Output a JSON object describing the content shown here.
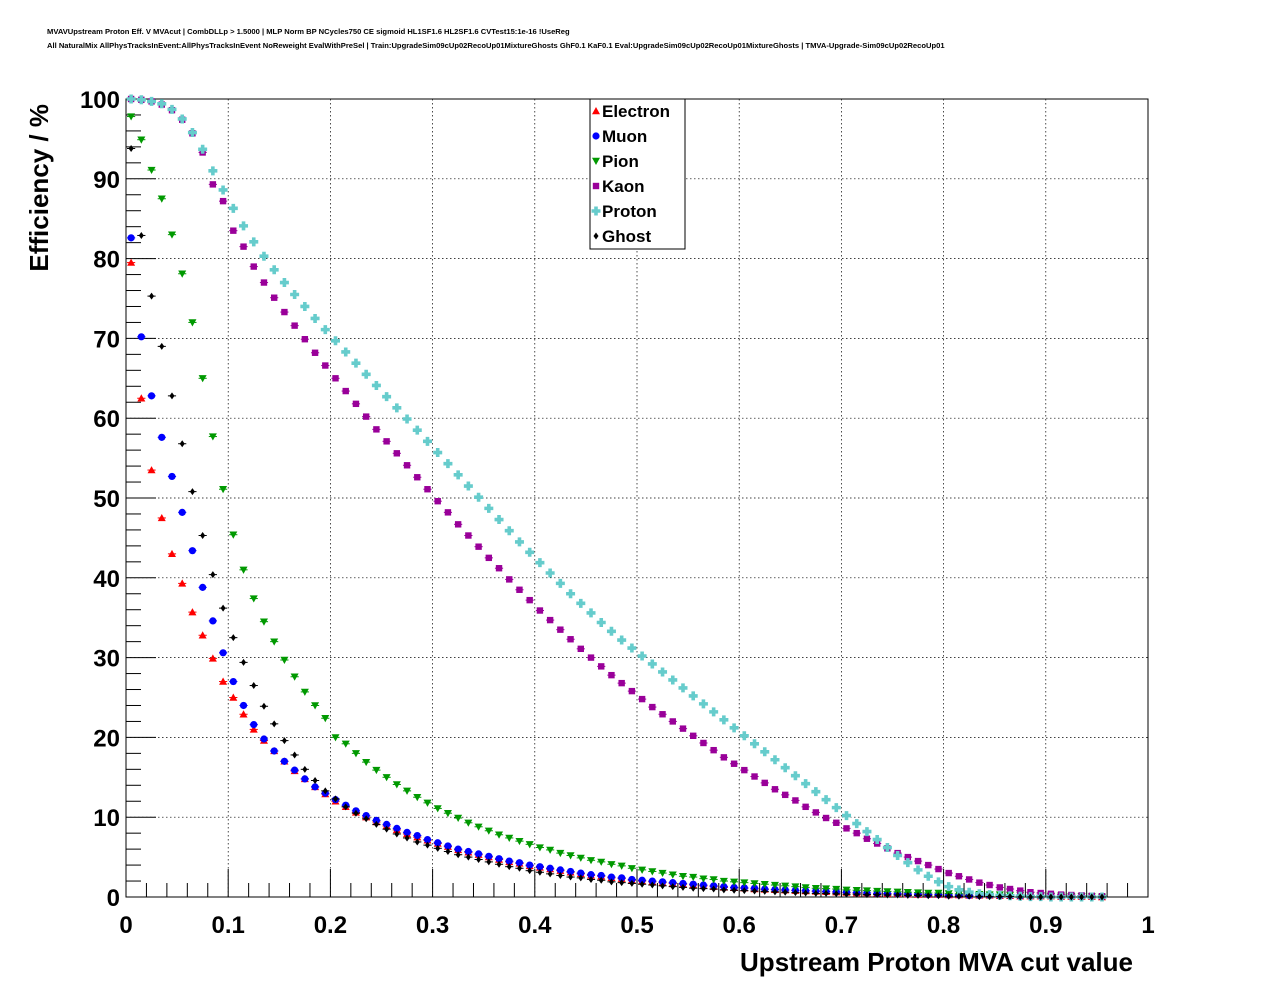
{
  "header": {
    "line1": "MVAVUpstream Proton Eff. V MVAcut | CombDLLp > 1.5000 | MLP Norm BP NCycles750 CE sigmoid HL1SF1.6 HL2SF1.6 CVTest15:1e-16 !UseReg",
    "line2": "All NaturalMix AllPhysTracksInEvent:AllPhysTracksInEvent NoReweight EvalWithPreSel | Train:UpgradeSim09cUp02RecoUp01MixtureGhosts GhF0.1 KaF0.1 Eval:UpgradeSim09cUp02RecoUp01MixtureGhosts | TMVA-Upgrade-Sim09cUp02RecoUp01"
  },
  "chart_data": {
    "type": "scatter",
    "xlabel": "Upstream Proton MVA cut value",
    "ylabel": "Efficiency / %",
    "xlim": [
      0,
      1
    ],
    "ylim": [
      0,
      100
    ],
    "x_ticks": [
      "0",
      "0.1",
      "0.2",
      "0.3",
      "0.4",
      "0.5",
      "0.6",
      "0.7",
      "0.8",
      "0.9",
      "1"
    ],
    "y_ticks": [
      "0",
      "10",
      "20",
      "30",
      "40",
      "50",
      "60",
      "70",
      "80",
      "90",
      "100"
    ],
    "grid": true,
    "legend_position": "top-center",
    "x": [
      0.005,
      0.015,
      0.025,
      0.035,
      0.045,
      0.055,
      0.065,
      0.075,
      0.085,
      0.095,
      0.105,
      0.115,
      0.125,
      0.135,
      0.145,
      0.155,
      0.165,
      0.175,
      0.185,
      0.195,
      0.205,
      0.215,
      0.225,
      0.235,
      0.245,
      0.255,
      0.265,
      0.275,
      0.285,
      0.295,
      0.305,
      0.315,
      0.325,
      0.335,
      0.345,
      0.355,
      0.365,
      0.375,
      0.385,
      0.395,
      0.405,
      0.415,
      0.425,
      0.435,
      0.445,
      0.455,
      0.465,
      0.475,
      0.485,
      0.495,
      0.505,
      0.515,
      0.525,
      0.535,
      0.545,
      0.555,
      0.565,
      0.575,
      0.585,
      0.595,
      0.605,
      0.615,
      0.625,
      0.635,
      0.645,
      0.655,
      0.665,
      0.675,
      0.685,
      0.695,
      0.705,
      0.715,
      0.725,
      0.735,
      0.745,
      0.755,
      0.765,
      0.775,
      0.785,
      0.795,
      0.805,
      0.815,
      0.825,
      0.835,
      0.845,
      0.855,
      0.865,
      0.875,
      0.885,
      0.895,
      0.905,
      0.915,
      0.925,
      0.935,
      0.945,
      0.955
    ],
    "series": [
      {
        "name": "Electron",
        "color": "#ff0000",
        "marker": "triangle-up",
        "values": [
          79.5,
          62.5,
          53.5,
          47.5,
          43.0,
          39.3,
          35.7,
          32.8,
          29.9,
          27.0,
          25.0,
          22.9,
          21.0,
          19.6,
          18.3,
          17.0,
          15.8,
          14.8,
          13.8,
          12.9,
          12.0,
          11.3,
          10.6,
          10.0,
          9.4,
          8.9,
          8.4,
          7.9,
          7.5,
          7.1,
          6.7,
          6.3,
          5.9,
          5.6,
          5.3,
          5.0,
          4.7,
          4.4,
          4.2,
          3.9,
          3.7,
          3.5,
          3.3,
          3.1,
          2.9,
          2.7,
          2.6,
          2.4,
          2.3,
          2.1,
          2.0,
          1.9,
          1.8,
          1.7,
          1.6,
          1.5,
          1.4,
          1.3,
          1.2,
          1.15,
          1.1,
          1.0,
          0.95,
          0.9,
          0.85,
          0.8,
          0.75,
          0.7,
          0.65,
          0.6,
          0.55,
          0.5,
          0.5,
          0.45,
          0.4,
          0.4,
          0.35,
          0.3,
          0.3,
          0.3,
          0.25,
          0.25,
          0.2,
          0.2,
          0.2,
          0.15,
          0.15,
          0.1,
          0.1,
          0.1,
          0.1,
          0.05,
          0.05,
          0.05,
          0.05,
          0.0
        ]
      },
      {
        "name": "Muon",
        "color": "#0000ff",
        "marker": "circle",
        "values": [
          82.6,
          70.2,
          62.8,
          57.6,
          52.7,
          48.2,
          43.4,
          38.8,
          34.6,
          30.6,
          27.0,
          24.0,
          21.6,
          19.8,
          18.3,
          17.0,
          15.9,
          14.8,
          13.8,
          13.0,
          12.2,
          11.5,
          10.8,
          10.2,
          9.6,
          9.1,
          8.6,
          8.1,
          7.7,
          7.2,
          6.8,
          6.4,
          6.0,
          5.7,
          5.4,
          5.1,
          4.8,
          4.5,
          4.3,
          4.0,
          3.8,
          3.6,
          3.4,
          3.2,
          3.0,
          2.8,
          2.7,
          2.5,
          2.4,
          2.2,
          2.1,
          2.0,
          1.9,
          1.8,
          1.7,
          1.6,
          1.5,
          1.4,
          1.3,
          1.2,
          1.15,
          1.1,
          1.0,
          0.95,
          0.9,
          0.85,
          0.8,
          0.75,
          0.7,
          0.65,
          0.6,
          0.55,
          0.5,
          0.45,
          0.45,
          0.4,
          0.35,
          0.35,
          0.3,
          0.3,
          0.25,
          0.25,
          0.2,
          0.2,
          0.2,
          0.15,
          0.15,
          0.1,
          0.1,
          0.1,
          0.1,
          0.05,
          0.05,
          0.05,
          0.05,
          0.0
        ]
      },
      {
        "name": "Pion",
        "color": "#009900",
        "marker": "triangle-down",
        "values": [
          97.8,
          94.9,
          91.1,
          87.5,
          83.0,
          78.1,
          72.0,
          65.0,
          57.7,
          51.1,
          45.4,
          41.0,
          37.4,
          34.5,
          32.0,
          29.7,
          27.6,
          25.7,
          24.0,
          22.4,
          20.0,
          19.2,
          18.0,
          16.9,
          15.9,
          15.0,
          14.1,
          13.3,
          12.5,
          11.8,
          11.1,
          10.5,
          9.9,
          9.3,
          8.8,
          8.3,
          7.8,
          7.4,
          7.0,
          6.6,
          6.2,
          5.9,
          5.5,
          5.2,
          4.9,
          4.6,
          4.4,
          4.1,
          3.9,
          3.6,
          3.4,
          3.2,
          3.0,
          2.8,
          2.6,
          2.5,
          2.3,
          2.2,
          2.0,
          1.9,
          1.8,
          1.7,
          1.6,
          1.5,
          1.4,
          1.3,
          1.2,
          1.1,
          1.05,
          1.0,
          0.9,
          0.85,
          0.8,
          0.75,
          0.7,
          0.65,
          0.6,
          0.55,
          0.5,
          0.5,
          0.45,
          0.4,
          0.4,
          0.35,
          0.3,
          0.3,
          0.25,
          0.25,
          0.2,
          0.2,
          0.15,
          0.15,
          0.1,
          0.1,
          0.05,
          0.0
        ]
      },
      {
        "name": "Kaon",
        "color": "#990099",
        "marker": "square",
        "values": [
          100.0,
          99.9,
          99.7,
          99.3,
          98.6,
          97.4,
          95.7,
          93.3,
          89.3,
          87.2,
          83.5,
          81.5,
          79.0,
          77.0,
          75.1,
          73.3,
          71.6,
          69.9,
          68.2,
          66.6,
          65.0,
          63.4,
          61.8,
          60.2,
          58.6,
          57.1,
          55.6,
          54.1,
          52.6,
          51.1,
          49.6,
          48.2,
          46.7,
          45.3,
          43.9,
          42.5,
          41.2,
          39.8,
          38.5,
          37.2,
          35.9,
          34.7,
          33.5,
          32.3,
          31.1,
          30.0,
          28.9,
          27.8,
          26.8,
          25.8,
          24.8,
          23.8,
          22.9,
          22.0,
          21.1,
          20.2,
          19.3,
          18.4,
          17.5,
          16.7,
          15.9,
          15.1,
          14.3,
          13.5,
          12.8,
          12.1,
          11.3,
          10.6,
          9.9,
          9.3,
          8.6,
          8.0,
          7.3,
          6.7,
          6.1,
          5.5,
          5.0,
          4.5,
          4.0,
          3.5,
          3.0,
          2.6,
          2.2,
          1.8,
          1.5,
          1.2,
          1.0,
          0.8,
          0.6,
          0.5,
          0.4,
          0.3,
          0.25,
          0.2,
          0.15,
          0.1
        ]
      },
      {
        "name": "Proton",
        "color": "#66cccc",
        "marker": "cross",
        "values": [
          100.0,
          99.9,
          99.7,
          99.4,
          98.7,
          97.5,
          95.8,
          93.7,
          91.0,
          88.6,
          86.3,
          84.1,
          82.1,
          80.3,
          78.6,
          77.0,
          75.5,
          74.0,
          72.5,
          71.1,
          69.7,
          68.3,
          66.9,
          65.5,
          64.1,
          62.7,
          61.3,
          59.9,
          58.5,
          57.1,
          55.7,
          54.3,
          52.9,
          51.5,
          50.1,
          48.7,
          47.3,
          45.9,
          44.5,
          43.2,
          41.9,
          40.6,
          39.3,
          38.0,
          36.8,
          35.6,
          34.4,
          33.3,
          32.2,
          31.2,
          30.2,
          29.2,
          28.2,
          27.2,
          26.2,
          25.2,
          24.2,
          23.2,
          22.2,
          21.2,
          20.2,
          19.2,
          18.2,
          17.2,
          16.2,
          15.2,
          14.2,
          13.2,
          12.2,
          11.2,
          10.2,
          9.2,
          8.2,
          7.2,
          6.2,
          5.2,
          4.3,
          3.4,
          2.6,
          1.9,
          1.3,
          0.9,
          0.6,
          0.4,
          0.3,
          0.2,
          0.15,
          0.1,
          0.05,
          0.05,
          0.0,
          0.0,
          0.0,
          0.0,
          0.0,
          0.0
        ]
      },
      {
        "name": "Ghost",
        "color": "#000000",
        "marker": "diamond",
        "values": [
          93.8,
          82.9,
          75.3,
          69.0,
          62.8,
          56.8,
          50.8,
          45.3,
          40.4,
          36.2,
          32.5,
          29.4,
          26.5,
          23.9,
          21.7,
          19.6,
          17.8,
          16.0,
          14.6,
          13.3,
          12.3,
          11.3,
          10.5,
          9.8,
          9.1,
          8.5,
          7.9,
          7.4,
          6.9,
          6.5,
          6.1,
          5.7,
          5.3,
          5.0,
          4.7,
          4.4,
          4.1,
          3.8,
          3.6,
          3.3,
          3.1,
          2.9,
          2.7,
          2.5,
          2.4,
          2.2,
          2.1,
          1.9,
          1.8,
          1.7,
          1.6,
          1.5,
          1.4,
          1.3,
          1.2,
          1.1,
          1.05,
          1.0,
          0.9,
          0.85,
          0.8,
          0.75,
          0.7,
          0.65,
          0.6,
          0.55,
          0.5,
          0.45,
          0.45,
          0.4,
          0.35,
          0.35,
          0.3,
          0.3,
          0.25,
          0.25,
          0.2,
          0.2,
          0.15,
          0.15,
          0.1,
          0.1,
          0.1,
          0.05,
          0.05,
          0.05,
          0.05,
          0.0,
          0.0,
          0.0,
          0.0,
          0.0,
          0.0,
          0.0,
          0.0,
          0.0
        ]
      }
    ]
  }
}
